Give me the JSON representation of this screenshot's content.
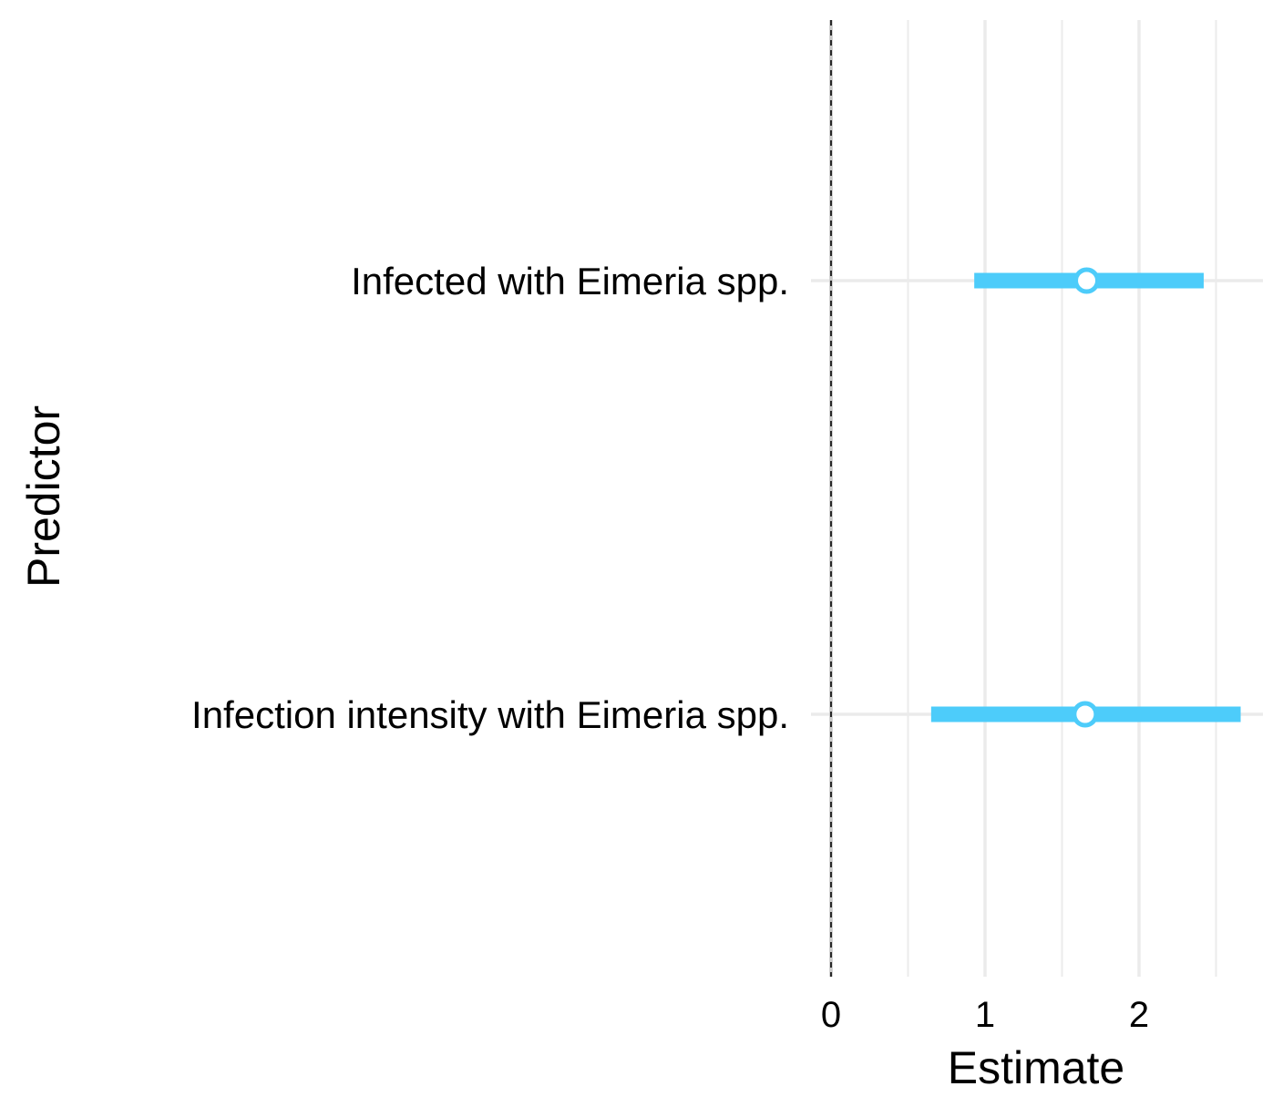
{
  "chart_data": {
    "type": "forest",
    "xlabel": "Estimate",
    "ylabel": "Predictor",
    "xlim": [
      -0.15,
      2.8
    ],
    "x_ticks": [
      0,
      1,
      2
    ],
    "x_minor_ticks": [
      0.5,
      1.5,
      2.5
    ],
    "reference_line": 0,
    "grid": true,
    "legend": "none",
    "categories": [
      "Infected with Eimeria spp.",
      "Infection intensity with Eimeria spp."
    ],
    "points": [
      {
        "label": "Infected with Eimeria spp.",
        "estimate": 1.66,
        "low": 0.93,
        "high": 2.42
      },
      {
        "label": "Infection intensity with Eimeria spp.",
        "estimate": 1.65,
        "low": 0.65,
        "high": 2.66
      }
    ],
    "colors": {
      "series": "#4DCCFA",
      "grid": "#EBEBEB",
      "reference": "#000000"
    }
  }
}
